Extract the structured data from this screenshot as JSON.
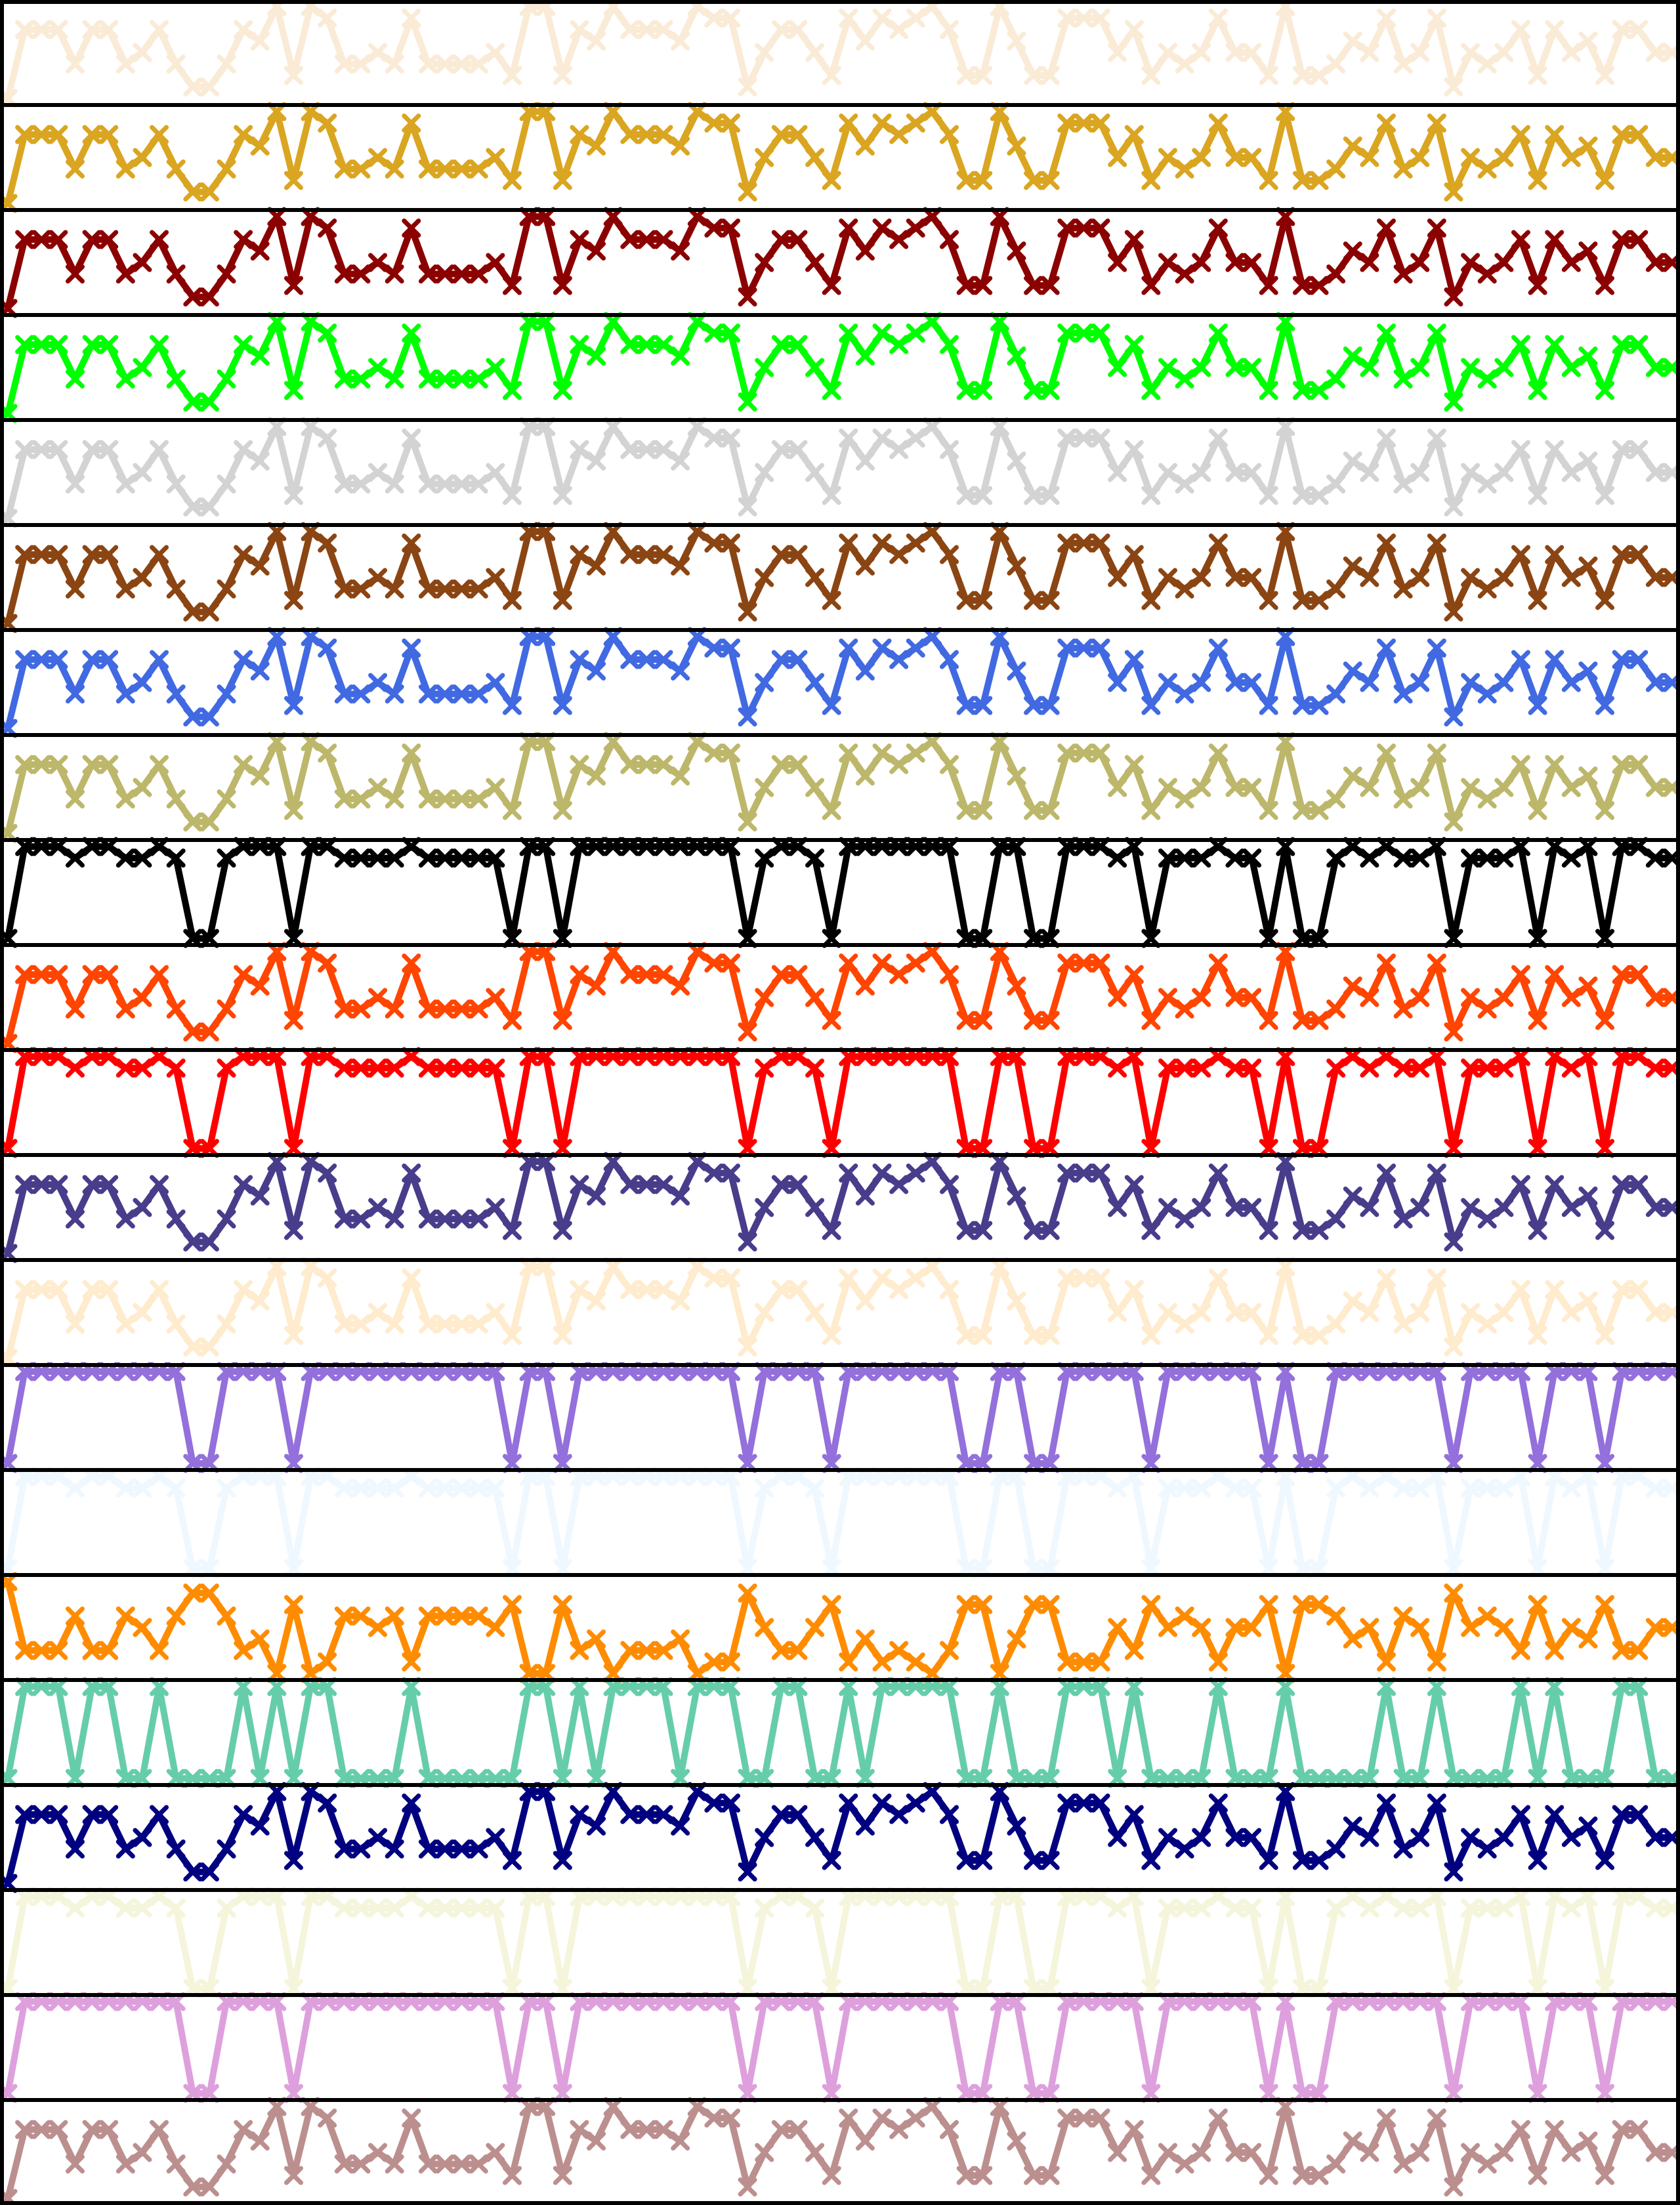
{
  "chart_data": {
    "type": "line",
    "layout": "stacked-panels",
    "marker": "x",
    "grid": false,
    "legend": "none",
    "title": "",
    "xlabel": "",
    "ylabel": "",
    "xlim": [
      0,
      99
    ],
    "x_ticks_shown": false,
    "y_ticks_shown": false,
    "base_pattern": [
      1,
      7,
      7,
      7,
      4,
      7,
      7,
      4,
      5,
      7,
      4,
      2,
      2,
      4,
      7,
      6,
      9,
      3,
      9,
      8,
      4,
      4,
      5,
      4,
      8,
      4,
      4,
      4,
      4,
      5,
      3,
      9,
      9,
      3,
      7,
      6,
      9,
      7,
      7,
      7,
      6,
      9,
      8,
      8,
      2,
      5,
      7,
      7,
      5,
      3,
      8,
      6,
      8,
      7,
      8,
      9,
      7,
      3,
      3,
      9,
      6,
      3,
      3,
      8,
      8,
      8,
      5,
      7,
      3,
      5,
      4,
      5,
      8,
      5,
      5,
      3,
      9,
      3,
      3,
      4,
      6,
      5,
      8,
      4,
      5,
      8,
      2,
      5,
      4,
      5,
      7,
      3,
      7,
      5,
      6,
      3,
      7,
      7,
      5,
      5
    ],
    "panels": [
      {
        "index": 0,
        "color": "#FAEBD7",
        "transform": "direct",
        "level_range": [
          2,
          9
        ]
      },
      {
        "index": 1,
        "color": "#DAA520",
        "transform": "direct",
        "level_range": [
          4,
          9
        ]
      },
      {
        "index": 2,
        "color": "#8B0000",
        "transform": "direct",
        "level_range": [
          1,
          9
        ]
      },
      {
        "index": 3,
        "color": "#00FF00",
        "transform": "direct",
        "level_range": [
          1,
          9
        ]
      },
      {
        "index": 4,
        "color": "#D3D3D3",
        "transform": "direct",
        "level_range": [
          1,
          9
        ]
      },
      {
        "index": 5,
        "color": "#8B4513",
        "transform": "direct",
        "level_range": [
          2,
          9
        ]
      },
      {
        "index": 6,
        "color": "#4169E1",
        "transform": "direct",
        "level_range": [
          2,
          9
        ]
      },
      {
        "index": 7,
        "color": "#BDB76B",
        "transform": "direct",
        "level_range": [
          2,
          9
        ]
      },
      {
        "index": 8,
        "color": "#000000",
        "transform": "compressed",
        "level_range": [
          1,
          9
        ]
      },
      {
        "index": 9,
        "color": "#FF4500",
        "transform": "direct",
        "level_range": [
          1,
          9
        ]
      },
      {
        "index": 10,
        "color": "#FF0000",
        "transform": "compressed",
        "level_range": [
          1,
          9
        ]
      },
      {
        "index": 11,
        "color": "#483D8B",
        "transform": "direct",
        "level_range": [
          2,
          9
        ]
      },
      {
        "index": 12,
        "color": "#FFEBCD",
        "transform": "direct",
        "level_range": [
          2,
          9
        ]
      },
      {
        "index": 13,
        "color": "#9370DB",
        "transform": "threshold",
        "level_range": [
          1,
          3
        ]
      },
      {
        "index": 14,
        "color": "#F0F8FF",
        "transform": "compressed",
        "level_range": [
          1,
          9
        ]
      },
      {
        "index": 15,
        "color": "#FF8C00",
        "transform": "inverted",
        "level_range": [
          1,
          9
        ]
      },
      {
        "index": 16,
        "color": "#66CDAA",
        "transform": "binary-high",
        "level_range": [
          7,
          8
        ]
      },
      {
        "index": 17,
        "color": "#000080",
        "transform": "direct",
        "level_range": [
          1,
          9
        ]
      },
      {
        "index": 18,
        "color": "#F5F5DC",
        "transform": "compressed",
        "level_range": [
          1,
          9
        ]
      },
      {
        "index": 19,
        "color": "#DDA0DD",
        "transform": "threshold",
        "level_range": [
          1,
          3
        ]
      },
      {
        "index": 20,
        "color": "#BC8F8F",
        "transform": "direct",
        "level_range": [
          2,
          9
        ]
      }
    ]
  }
}
